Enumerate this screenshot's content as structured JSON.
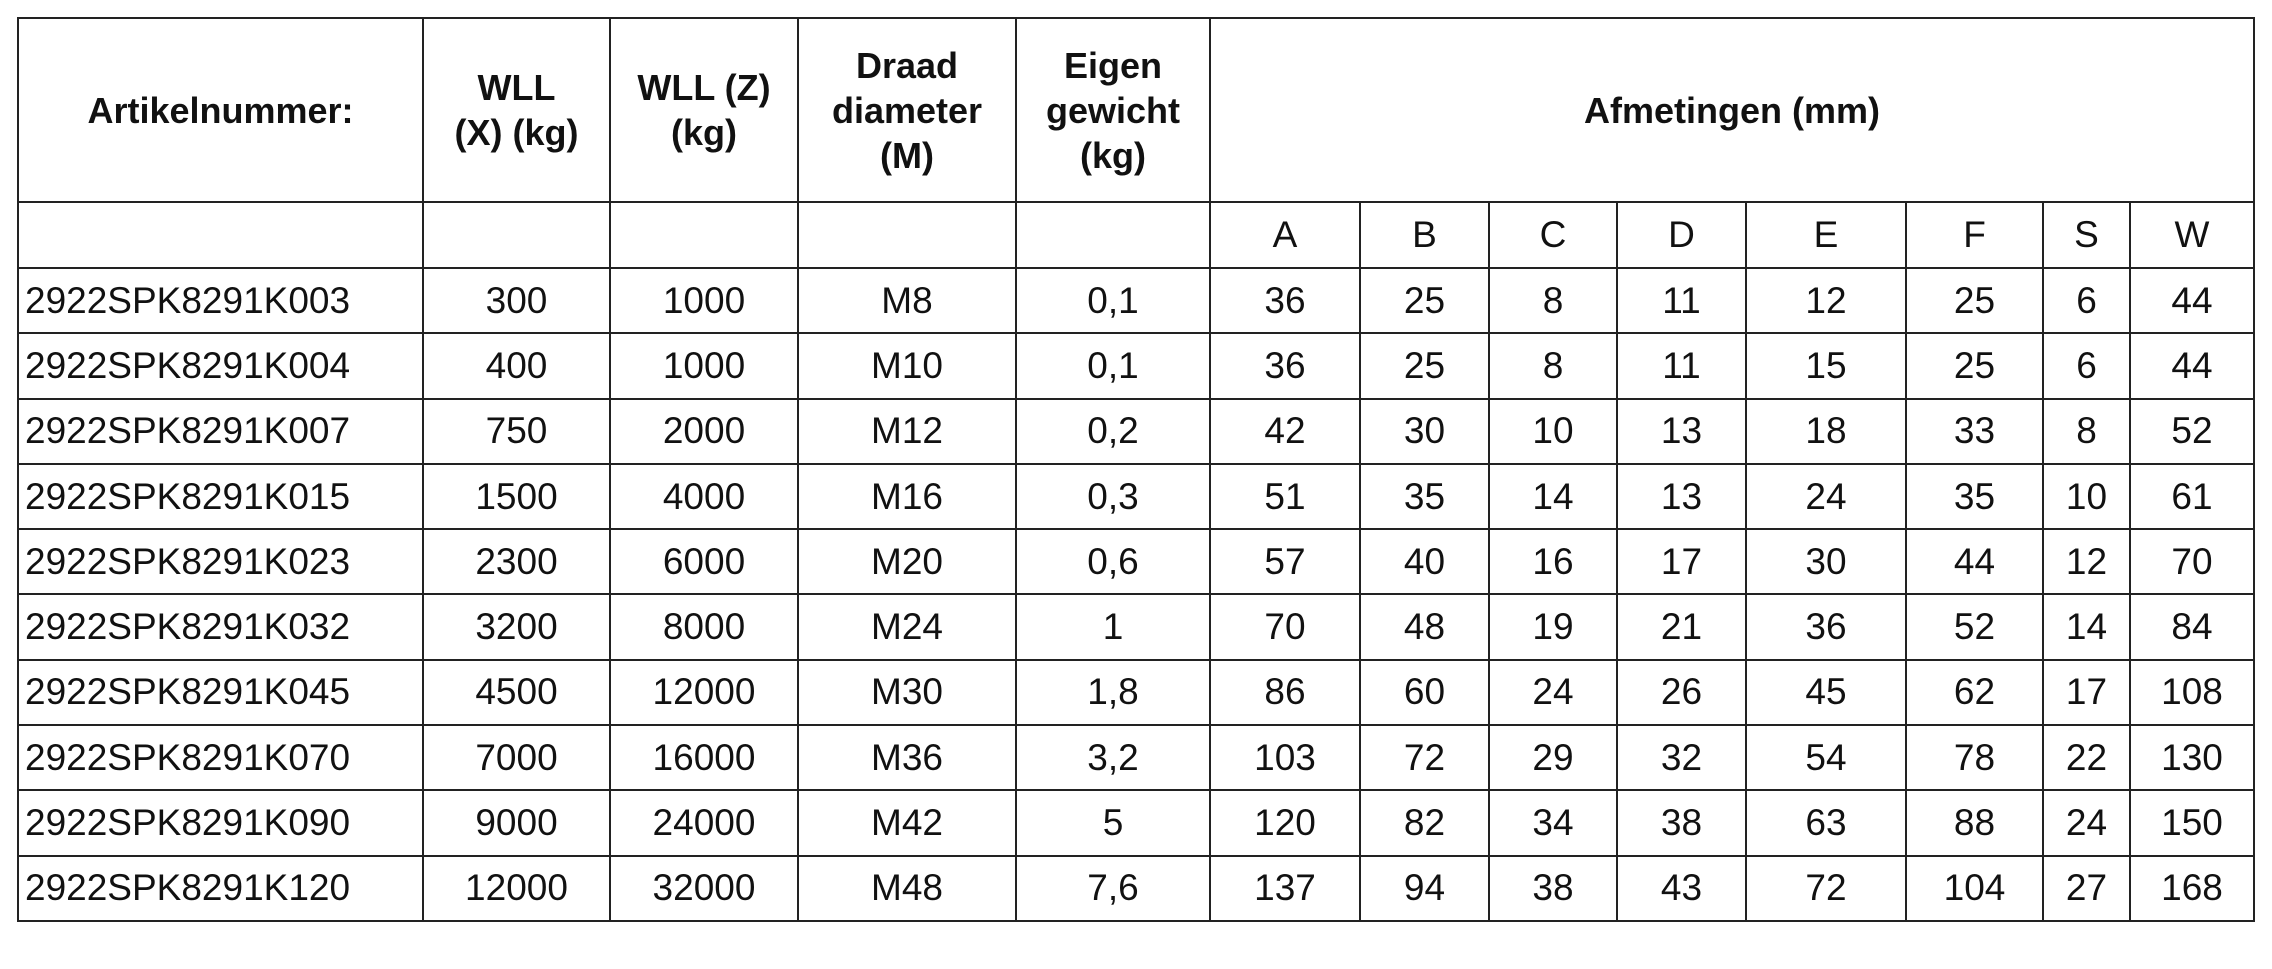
{
  "table": {
    "header": [
      "Artikelnummer:",
      "WLL\n(X) (kg)",
      "WLL (Z)\n(kg)",
      "Draad\ndiameter\n(M)",
      "Eigen\ngewicht\n(kg)",
      "Afmetingen (mm)"
    ],
    "subheader": [
      "A",
      "B",
      "C",
      "D",
      "E",
      "F",
      "S",
      "W"
    ],
    "rows": [
      [
        "2922SPK8291K003",
        "300",
        "1000",
        "M8",
        "0,1",
        "36",
        "25",
        "8",
        "11",
        "12",
        "25",
        "6",
        "44"
      ],
      [
        "2922SPK8291K004",
        "400",
        "1000",
        "M10",
        "0,1",
        "36",
        "25",
        "8",
        "11",
        "15",
        "25",
        "6",
        "44"
      ],
      [
        "2922SPK8291K007",
        "750",
        "2000",
        "M12",
        "0,2",
        "42",
        "30",
        "10",
        "13",
        "18",
        "33",
        "8",
        "52"
      ],
      [
        "2922SPK8291K015",
        "1500",
        "4000",
        "M16",
        "0,3",
        "51",
        "35",
        "14",
        "13",
        "24",
        "35",
        "10",
        "61"
      ],
      [
        "2922SPK8291K023",
        "2300",
        "6000",
        "M20",
        "0,6",
        "57",
        "40",
        "16",
        "17",
        "30",
        "44",
        "12",
        "70"
      ],
      [
        "2922SPK8291K032",
        "3200",
        "8000",
        "M24",
        "1",
        "70",
        "48",
        "19",
        "21",
        "36",
        "52",
        "14",
        "84"
      ],
      [
        "2922SPK8291K045",
        "4500",
        "12000",
        "M30",
        "1,8",
        "86",
        "60",
        "24",
        "26",
        "45",
        "62",
        "17",
        "108"
      ],
      [
        "2922SPK8291K070",
        "7000",
        "16000",
        "M36",
        "3,2",
        "103",
        "72",
        "29",
        "32",
        "54",
        "78",
        "22",
        "130"
      ],
      [
        "2922SPK8291K090",
        "9000",
        "24000",
        "M42",
        "5",
        "120",
        "82",
        "34",
        "38",
        "63",
        "88",
        "24",
        "150"
      ],
      [
        "2922SPK8291K120",
        "12000",
        "32000",
        "M48",
        "7,6",
        "137",
        "94",
        "38",
        "43",
        "72",
        "104",
        "27",
        "168"
      ]
    ]
  }
}
